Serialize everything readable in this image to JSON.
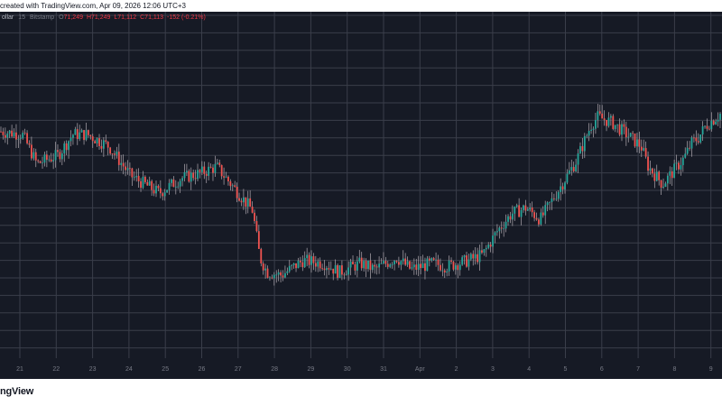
{
  "header": {
    "caption": "created with TradingView.com, Apr 09, 2026 12:06 UTC+3"
  },
  "legend": {
    "symbol": "ollar",
    "interval": "15",
    "exchange": "Bitstamp",
    "o_label": "O",
    "open": "71,249",
    "high": "H71,249",
    "low": "L71,112",
    "close": "C71,113",
    "change": "-152 (-0.21%)"
  },
  "footer": {
    "brand": "ngView"
  },
  "colors": {
    "background": "#161a25",
    "grid": "#3a3e4a",
    "up": "#26a69a",
    "down": "#ef5350",
    "wick": "#b0a9b0",
    "axis_text": "#787b86"
  },
  "chart_data": {
    "type": "candlestick",
    "title": "",
    "xlabel": "",
    "ylabel": "",
    "x_ticks": [
      "21",
      "22",
      "23",
      "24",
      "25",
      "26",
      "27",
      "28",
      "29",
      "30",
      "31",
      "Apr",
      "2",
      "3",
      "4",
      "5",
      "6",
      "7",
      "8",
      "9"
    ],
    "grid": true,
    "y_scale": "linear",
    "price_path_relative": [
      [
        0.0,
        0.73
      ],
      [
        0.03,
        0.72
      ],
      [
        0.05,
        0.62
      ],
      [
        0.08,
        0.65
      ],
      [
        0.1,
        0.72
      ],
      [
        0.12,
        0.72
      ],
      [
        0.15,
        0.68
      ],
      [
        0.18,
        0.58
      ],
      [
        0.2,
        0.55
      ],
      [
        0.22,
        0.52
      ],
      [
        0.25,
        0.57
      ],
      [
        0.28,
        0.59
      ],
      [
        0.3,
        0.61
      ],
      [
        0.32,
        0.55
      ],
      [
        0.35,
        0.46
      ],
      [
        0.36,
        0.3
      ],
      [
        0.37,
        0.25
      ],
      [
        0.39,
        0.24
      ],
      [
        0.42,
        0.29
      ],
      [
        0.45,
        0.28
      ],
      [
        0.47,
        0.25
      ],
      [
        0.5,
        0.28
      ],
      [
        0.52,
        0.26
      ],
      [
        0.55,
        0.3
      ],
      [
        0.57,
        0.26
      ],
      [
        0.6,
        0.28
      ],
      [
        0.62,
        0.27
      ],
      [
        0.65,
        0.29
      ],
      [
        0.67,
        0.31
      ],
      [
        0.69,
        0.39
      ],
      [
        0.71,
        0.45
      ],
      [
        0.73,
        0.47
      ],
      [
        0.75,
        0.43
      ],
      [
        0.76,
        0.47
      ],
      [
        0.78,
        0.55
      ],
      [
        0.8,
        0.63
      ],
      [
        0.82,
        0.75
      ],
      [
        0.83,
        0.78
      ],
      [
        0.85,
        0.76
      ],
      [
        0.87,
        0.72
      ],
      [
        0.89,
        0.68
      ],
      [
        0.9,
        0.61
      ],
      [
        0.92,
        0.55
      ],
      [
        0.93,
        0.58
      ],
      [
        0.95,
        0.64
      ],
      [
        0.96,
        0.69
      ],
      [
        0.97,
        0.71
      ],
      [
        0.98,
        0.75
      ],
      [
        0.99,
        0.77
      ],
      [
        1.0,
        0.79
      ]
    ]
  }
}
